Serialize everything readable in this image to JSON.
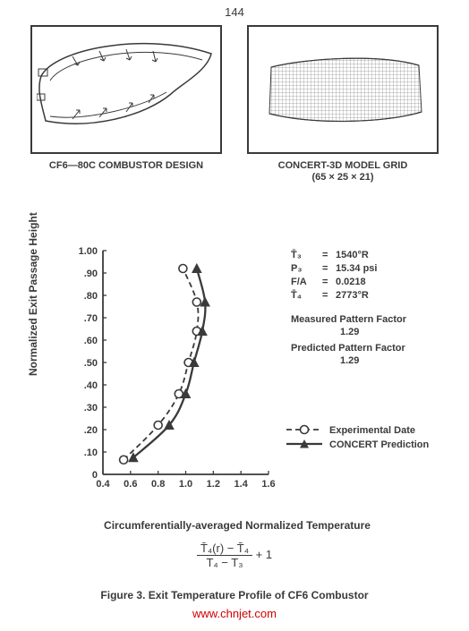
{
  "page_number": "144",
  "panel_left": {
    "caption": "CF6—80C COMBUSTOR DESIGN"
  },
  "panel_right": {
    "caption": "CONCERT-3D MODEL GRID",
    "subcaption": "(65 × 25 × 21)"
  },
  "chart": {
    "type": "line",
    "y_label": "Normalized Exit Passage Height",
    "x_label": "Circumferentially-averaged Normalized Temperature",
    "xlim": [
      0.4,
      1.6
    ],
    "ylim": [
      0,
      1.0
    ],
    "x_ticks": [
      "0.4",
      "0.6",
      "0.8",
      "1.0",
      "1.2",
      "1.4",
      "1.6"
    ],
    "y_ticks": [
      "0",
      ".10",
      ".20",
      ".30",
      ".40",
      ".50",
      ".60",
      ".70",
      ".80",
      ".90",
      "1.00"
    ],
    "tick_len": 4,
    "axis_color": "#3a3a3a",
    "text_color": "#3a3a3a",
    "tick_fontsize": 11,
    "series": {
      "experimental": {
        "label": "Experimental Date",
        "color": "#3a3a3a",
        "dash": "6,4",
        "line_width": 1.8,
        "marker": "circle",
        "marker_size": 4.5,
        "marker_fill": "#ffffff",
        "marker_stroke": "#3a3a3a",
        "points": [
          [
            0.55,
            0.065
          ],
          [
            0.8,
            0.22
          ],
          [
            0.95,
            0.36
          ],
          [
            1.02,
            0.5
          ],
          [
            1.08,
            0.64
          ],
          [
            1.08,
            0.77
          ],
          [
            0.98,
            0.92
          ]
        ]
      },
      "concert": {
        "label": "CONCERT Prediction",
        "color": "#3a3a3a",
        "dash": "none",
        "line_width": 2.3,
        "marker": "triangle",
        "marker_size": 5,
        "marker_fill": "#3a3a3a",
        "marker_stroke": "#3a3a3a",
        "points": [
          [
            0.62,
            0.075
          ],
          [
            0.88,
            0.22
          ],
          [
            1.0,
            0.36
          ],
          [
            1.06,
            0.5
          ],
          [
            1.12,
            0.64
          ],
          [
            1.14,
            0.77
          ],
          [
            1.08,
            0.92
          ]
        ]
      }
    },
    "params": [
      {
        "name": "T̄₃",
        "eq": "=",
        "value": "1540°R"
      },
      {
        "name": "P₃",
        "eq": "=",
        "value": "15.34 psi"
      },
      {
        "name": "F/A",
        "eq": "=",
        "value": "0.0218"
      },
      {
        "name": "T̄₄",
        "eq": "=",
        "value": "2773°R"
      }
    ],
    "factors": {
      "measured": {
        "label": "Measured Pattern Factor",
        "value": "1.29"
      },
      "predicted": {
        "label": "Predicted Pattern Factor",
        "value": "1.29"
      }
    },
    "legend": {
      "exp": "Experimental Date",
      "con": "CONCERT Prediction"
    }
  },
  "equation": {
    "numerator": "T̄₄(r)  −  T̄₄",
    "denominator": "T₄  −  T₃",
    "suffix": "  +  1"
  },
  "figure_caption": "Figure 3.  Exit Temperature Profile of CF6 Combustor",
  "watermark": "www.chnjet.com"
}
